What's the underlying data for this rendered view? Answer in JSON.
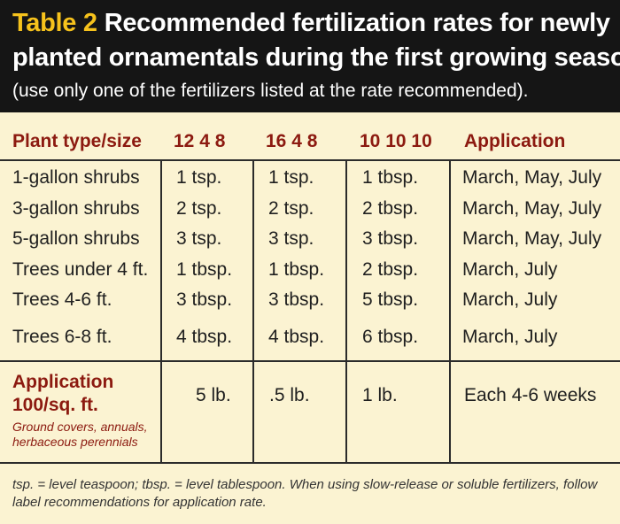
{
  "header": {
    "table_label": "Table 2",
    "title_line1": "Recommended fertilization rates for newly",
    "title_line2": "planted ornamentals during the first growing season.",
    "subtitle": "(use only one of the fertilizers listed at the rate recommended)."
  },
  "columns": [
    "Plant type/size",
    "12  4  8",
    "16  4  8",
    "10 10 10",
    "Application"
  ],
  "rows": [
    [
      "1-gallon shrubs",
      "1 tsp.",
      "1 tsp.",
      "1 tbsp.",
      "March, May, July"
    ],
    [
      "3-gallon shrubs",
      "2 tsp.",
      "2 tsp.",
      "2 tbsp.",
      "March, May, July"
    ],
    [
      "5-gallon shrubs",
      "3 tsp.",
      "3 tsp.",
      "3 tbsp.",
      "March, May, July"
    ],
    [
      "Trees under 4 ft.",
      "1 tbsp.",
      "1 tbsp.",
      "2 tbsp.",
      "March, July"
    ],
    [
      "Trees 4-6 ft.",
      "3 tbsp.",
      "3 tbsp.",
      "5 tbsp.",
      "March, July"
    ],
    [
      "Trees 6-8 ft.",
      "4 tbsp.",
      "4 tbsp.",
      "6 tbsp.",
      "March, July"
    ]
  ],
  "application_row": {
    "label_line1": "Application",
    "label_line2": "100/sq. ft.",
    "note": "Ground covers, annuals, herbaceous perennials",
    "values": [
      "5 lb.",
      ".5 lb.",
      "1 lb.",
      "Each 4-6 weeks"
    ]
  },
  "footnote": "tsp. = level teaspoon; tbsp. = level tablespoon. When using slow-release or soluble fertilizers, follow label recommendations for application rate."
}
